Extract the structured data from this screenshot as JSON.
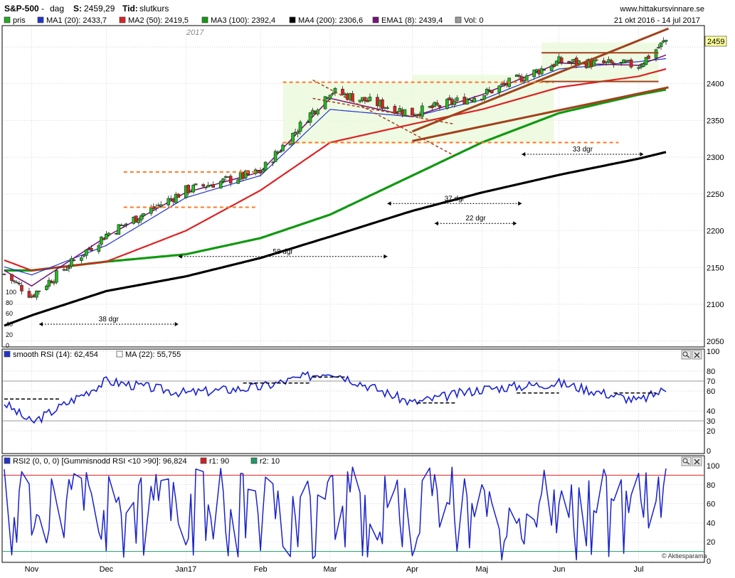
{
  "header": {
    "symbol": "S&P-500",
    "sep": "-",
    "period": "dag",
    "last_label": "S:",
    "last_value": "2459,29",
    "time_label": "Tid:",
    "time_value": "slutkurs",
    "site": "www.hittakursvinnare.se",
    "date_range": "21 okt 2016 - 14 jul 2017"
  },
  "legend": [
    {
      "label": "pris",
      "color": "#22aa22"
    },
    {
      "label": "MA1 (20): 2433,7",
      "color": "#2233cc"
    },
    {
      "label": "MA2 (50): 2419,5",
      "color": "#dd2222"
    },
    {
      "label": "MA3 (100): 2392,4",
      "color": "#119911"
    },
    {
      "label": "MA4 (200): 2306,6",
      "color": "#000000"
    },
    {
      "label": "EMA1 (8): 2439,4",
      "color": "#771177"
    },
    {
      "label": "Vol: 0",
      "color": "#999999"
    }
  ],
  "year_label": "2017",
  "last_price_badge": "2459",
  "annotations": [
    "38 dgr",
    "58 dgr",
    "37 dgr",
    "22 dgr",
    "33 dgr"
  ],
  "x_months": [
    "Nov",
    "Dec",
    "Jan17",
    "Feb",
    "Mar",
    "Apr",
    "Maj",
    "Jun",
    "Jul"
  ],
  "volume_ticks": [
    "100",
    "80",
    "60",
    "40",
    "20",
    "0"
  ],
  "panel_rsi": {
    "legend": [
      {
        "label": "smooth RSI (14): 62,454",
        "color": "#2233cc"
      },
      {
        "label": "MA (22): 55,755",
        "color": "#ffffff"
      }
    ]
  },
  "panel_rsi2": {
    "legend": [
      {
        "label": "RSI2 (0, 0, 0) [Gummisnodd RSI <10 >90]: 96,824",
        "color": "#2233cc"
      },
      {
        "label": "r1: 90",
        "color": "#cc2222"
      },
      {
        "label": "r2: 10",
        "color": "#229966"
      }
    ]
  },
  "copyright": "© Aktiesparama",
  "colors": {
    "price_up": "#22bb22",
    "price_down": "#dd2222",
    "ma20": "#2233cc",
    "ma50": "#dd2222",
    "ma100": "#119911",
    "ma200": "#000000",
    "ema8": "#771177",
    "channel": "#a0421c",
    "support": "#ff7722",
    "zone": "#e9f8d8",
    "grid": "#c8c8c8",
    "rsi": "#1a22cc"
  },
  "chart_data": [
    {
      "type": "line",
      "title": "S&P-500",
      "x": [
        "2016-10-21",
        "2016-11-01",
        "2016-12-01",
        "2017-01-02",
        "2017-02-01",
        "2017-03-01",
        "2017-04-03",
        "2017-05-01",
        "2017-06-01",
        "2017-07-03",
        "2017-07-14"
      ],
      "y_axis_ticks": [
        2050,
        2100,
        2150,
        2200,
        2250,
        2300,
        2350,
        2400
      ],
      "ylim": [
        2043,
        2478
      ],
      "series": [
        {
          "name": "pris",
          "values": [
            2141,
            2112,
            2195,
            2255,
            2280,
            2390,
            2360,
            2385,
            2430,
            2425,
            2459
          ]
        },
        {
          "name": "MA1 (20): 2433,7",
          "values": [
            2151,
            2140,
            2180,
            2245,
            2275,
            2365,
            2355,
            2378,
            2420,
            2430,
            2434
          ]
        },
        {
          "name": "MA2 (50): 2419,5",
          "values": [
            2160,
            2146,
            2158,
            2200,
            2255,
            2320,
            2345,
            2365,
            2395,
            2410,
            2420
          ]
        },
        {
          "name": "MA3 (100): 2392,4",
          "values": [
            2146,
            2146,
            2158,
            2168,
            2190,
            2222,
            2275,
            2320,
            2360,
            2385,
            2392
          ]
        },
        {
          "name": "MA4 (200): 2306,6",
          "values": [
            2071,
            2085,
            2118,
            2138,
            2163,
            2192,
            2227,
            2252,
            2276,
            2298,
            2307
          ]
        },
        {
          "name": "EMA1 (8): 2439,4",
          "values": [
            2146,
            2125,
            2192,
            2252,
            2280,
            2380,
            2355,
            2385,
            2428,
            2425,
            2439
          ]
        }
      ]
    },
    {
      "type": "line",
      "title": "smooth RSI (14): 62,454",
      "ylim": [
        0,
        100
      ],
      "y_ticks": [
        0,
        20,
        30,
        40,
        60,
        70,
        80,
        100
      ],
      "reference_lines": [
        70,
        30
      ],
      "x": [
        "2016-10-21",
        "2016-11-01",
        "2016-12-01",
        "2017-01-02",
        "2017-02-01",
        "2017-03-01",
        "2017-04-03",
        "2017-05-01",
        "2017-06-01",
        "2017-07-03",
        "2017-07-14"
      ],
      "series": [
        {
          "name": "smooth RSI (14): 62,454",
          "values": [
            48,
            28,
            70,
            58,
            64,
            80,
            48,
            62,
            68,
            50,
            62
          ]
        }
      ]
    },
    {
      "type": "line",
      "title": "RSI2 (0, 0, 0) [Gummisnodd RSI <10 >90]: 96,824",
      "ylim": [
        0,
        100
      ],
      "y_ticks": [
        0,
        20,
        40,
        60,
        80,
        100
      ],
      "reference_lines": [
        90,
        10
      ],
      "x": [
        "2016-10-21",
        "2016-11-01",
        "2016-12-01",
        "2017-01-02",
        "2017-02-01",
        "2017-03-01",
        "2017-04-03",
        "2017-05-01",
        "2017-06-01",
        "2017-07-03",
        "2017-07-14"
      ],
      "series": [
        {
          "name": "RSI2 (0, 0, 0) [Gummisnodd RSI <10 >90]: 96,824",
          "values": [
            56,
            2,
            90,
            4,
            95,
            92,
            30,
            70,
            60,
            40,
            97
          ]
        }
      ]
    }
  ]
}
